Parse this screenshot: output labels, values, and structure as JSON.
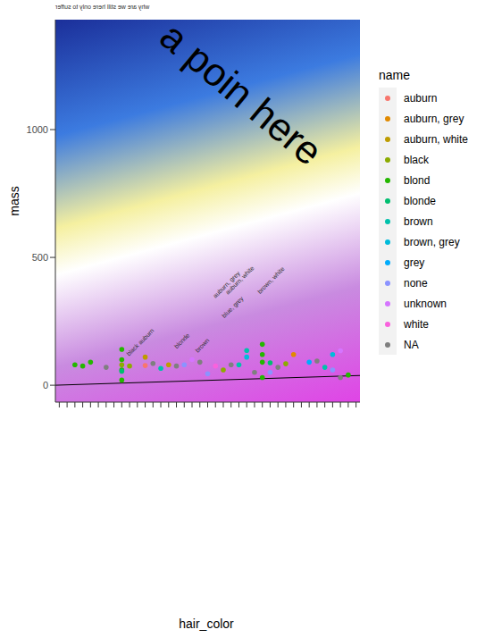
{
  "chart_data": {
    "type": "scatter",
    "title": "why are we still here only to suffer",
    "annotation": "a poin here",
    "x_label": "hair_color",
    "y_label": "mass",
    "legend_title": "name",
    "legend": "right",
    "tick_labels": "y",
    "grid": false,
    "xlim": [
      0.5,
      39.5
    ],
    "xticks": [
      1,
      2,
      3,
      4,
      5,
      6,
      7,
      8,
      9,
      10,
      11,
      12,
      13,
      14,
      15,
      16,
      17,
      18,
      19,
      20,
      21,
      22,
      23,
      24,
      25,
      26,
      27,
      28,
      29,
      30,
      31,
      32,
      33,
      34,
      35,
      36,
      37,
      38,
      39
    ],
    "ylim": [
      -66,
      1430
    ],
    "yticks": [
      0,
      500,
      1000
    ],
    "series": [
      {
        "name": "auburn",
        "color": "#F8766D",
        "x": [
          12
        ],
        "values": [
          77
        ]
      },
      {
        "name": "auburn, grey",
        "color": "#E18A00",
        "x": [
          31
        ],
        "values": [
          120
        ]
      },
      {
        "name": "auburn, white",
        "color": "#BE9C00",
        "x": [
          12,
          15
        ],
        "values": [
          110,
          80
        ]
      },
      {
        "name": "black",
        "color": "#8CAB00",
        "x": [
          9,
          10,
          22,
          30
        ],
        "values": [
          80,
          75,
          60,
          84
        ]
      },
      {
        "name": "blond",
        "color": "#24B700",
        "x": [
          3,
          4,
          5,
          9,
          9,
          9,
          9,
          27,
          27,
          27,
          27,
          38
        ],
        "values": [
          80,
          75,
          90,
          20,
          60,
          100,
          140,
          30,
          90,
          120,
          160,
          40
        ]
      },
      {
        "name": "blonde",
        "color": "#00BE70",
        "x": [
          9,
          28
        ],
        "values": [
          55,
          88
        ]
      },
      {
        "name": "brown",
        "color": "#00C1AB",
        "x": [
          14,
          24,
          25,
          35
        ],
        "values": [
          66,
          80,
          136,
          70
        ]
      },
      {
        "name": "brown, grey",
        "color": "#00BBDA",
        "x": [
          25,
          36
        ],
        "values": [
          110,
          120
        ]
      },
      {
        "name": "grey",
        "color": "#00ACFC",
        "x": [
          33
        ],
        "values": [
          90
        ]
      },
      {
        "name": "none",
        "color": "#8B93FF",
        "x": [
          17,
          20,
          28,
          36
        ],
        "values": [
          80,
          45,
          50,
          60
        ]
      },
      {
        "name": "unknown",
        "color": "#D575FE",
        "x": [
          18,
          37
        ],
        "values": [
          100,
          135
        ]
      },
      {
        "name": "white",
        "color": "#F962DD",
        "x": [
          21
        ],
        "values": [
          75
        ]
      },
      {
        "name": "NA",
        "color": "#7F7F7F",
        "x": [
          7,
          13,
          16,
          19,
          23,
          26,
          29,
          34,
          37
        ],
        "values": [
          70,
          85,
          75,
          90,
          80,
          50,
          70,
          95,
          30
        ]
      }
    ],
    "fit_line": {
      "color": "#000000",
      "x": [
        0.5,
        39.5
      ],
      "values": [
        0,
        38
      ]
    },
    "point_labels": [
      {
        "x": 22.6,
        "y": 388,
        "label": "auburn, grey"
      },
      {
        "x": 24.3,
        "y": 405,
        "label": "auburn, white"
      },
      {
        "x": 23.4,
        "y": 300,
        "label": "blue, grey"
      },
      {
        "x": 28.3,
        "y": 405,
        "label": "brown, white"
      },
      {
        "x": 16.9,
        "y": 168,
        "label": "blonde"
      },
      {
        "x": 19.5,
        "y": 150,
        "label": "brown"
      },
      {
        "x": 12.3,
        "y": 185,
        "label": "auburn"
      },
      {
        "x": 10.6,
        "y": 133,
        "label": "black"
      }
    ]
  }
}
